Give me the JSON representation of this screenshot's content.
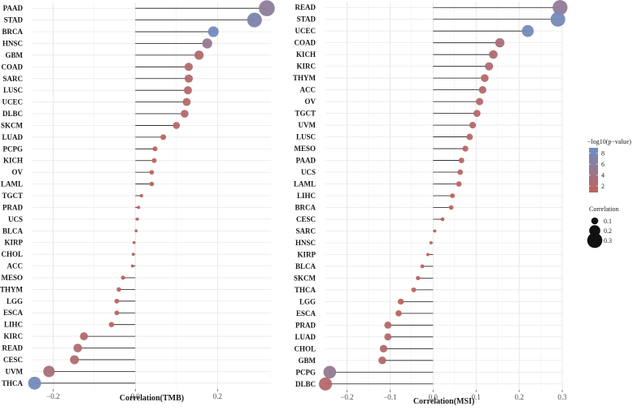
{
  "chart_data": [
    {
      "type": "lollipop",
      "xlabel": "Correlation(TMB)",
      "xlim": [
        -0.25,
        0.33
      ],
      "xticks": [
        -0.2,
        0.0,
        0.2
      ],
      "xtick_labels": [
        "−0.2",
        "0.0",
        "0.2"
      ],
      "categories": [
        "PAAD",
        "STAD",
        "BRCA",
        "HNSC",
        "GBM",
        "COAD",
        "SARC",
        "LUSC",
        "UCEC",
        "DLBC",
        "SKCM",
        "LUAD",
        "PCPG",
        "KICH",
        "OV",
        "LAML",
        "TGCT",
        "PRAD",
        "UCS",
        "BLCA",
        "KIRP",
        "CHOL",
        "ACC",
        "MESO",
        "THYM",
        "LGG",
        "ESCA",
        "LIHC",
        "KIRC",
        "READ",
        "CESC",
        "UVM",
        "THCA"
      ],
      "correlation": [
        0.32,
        0.29,
        0.19,
        0.175,
        0.155,
        0.13,
        0.13,
        0.128,
        0.125,
        0.12,
        0.1,
        0.068,
        0.048,
        0.046,
        0.04,
        0.04,
        0.015,
        0.008,
        0.005,
        0.002,
        -0.003,
        -0.005,
        -0.007,
        -0.03,
        -0.04,
        -0.045,
        -0.045,
        -0.058,
        -0.125,
        -0.14,
        -0.148,
        -0.21,
        -0.245
      ],
      "neg_log10_p": [
        5.8,
        7.0,
        8.5,
        5.0,
        2.5,
        2.2,
        2.0,
        2.0,
        2.0,
        2.0,
        2.0,
        1.5,
        1.0,
        1.0,
        1.0,
        1.0,
        1.0,
        1.0,
        1.0,
        1.0,
        1.0,
        1.0,
        1.0,
        1.0,
        1.0,
        1.0,
        1.0,
        1.0,
        2.0,
        2.5,
        2.5,
        3.0,
        8.0
      ]
    },
    {
      "type": "lollipop",
      "xlabel": "Correlation(MSI)",
      "xlim": [
        -0.25,
        0.3
      ],
      "xticks": [
        -0.2,
        -0.1,
        0.0,
        0.1,
        0.2,
        0.3
      ],
      "xtick_labels": [
        "−0.2",
        "−0.1",
        "0.0",
        "0.1",
        "0.2",
        "0.3"
      ],
      "categories": [
        "READ",
        "STAD",
        "UCEC",
        "COAD",
        "KICH",
        "KIRC",
        "THYM",
        "ACC",
        "OV",
        "TGCT",
        "UVM",
        "LUSC",
        "MESO",
        "PAAD",
        "UCS",
        "LAML",
        "LIHC",
        "BRCA",
        "CESC",
        "SARC",
        "HNSC",
        "KIRP",
        "BLCA",
        "SKCM",
        "THCA",
        "LGG",
        "ESCA",
        "PRAD",
        "LUAD",
        "CHOL",
        "GBM",
        "PCPG",
        "DLBC"
      ],
      "correlation": [
        0.295,
        0.29,
        0.22,
        0.155,
        0.14,
        0.13,
        0.12,
        0.115,
        0.108,
        0.102,
        0.092,
        0.085,
        0.075,
        0.066,
        0.063,
        0.06,
        0.045,
        0.042,
        0.022,
        0.004,
        -0.005,
        -0.012,
        -0.025,
        -0.035,
        -0.045,
        -0.075,
        -0.08,
        -0.105,
        -0.105,
        -0.115,
        -0.118,
        -0.24,
        -0.25
      ],
      "neg_log10_p": [
        5.5,
        8.0,
        8.0,
        3.0,
        2.5,
        2.5,
        2.0,
        2.0,
        2.0,
        2.0,
        2.0,
        1.5,
        1.5,
        1.5,
        1.0,
        1.0,
        1.0,
        1.0,
        1.0,
        1.0,
        1.0,
        1.0,
        1.0,
        1.0,
        1.0,
        1.0,
        1.0,
        2.0,
        2.0,
        2.0,
        2.0,
        5.0,
        2.0
      ]
    }
  ],
  "legend": {
    "color_title": "−log10(p−value)",
    "color_ticks": [
      8,
      6,
      4,
      2
    ],
    "color_low": "#c0625a",
    "color_high": "#6c8ec5",
    "color_range": [
      0.8,
      9.0
    ],
    "size_title": "Correlation",
    "size_ticks": [
      0.1,
      0.2,
      0.3
    ],
    "size_tick_labels": [
      "0.1",
      "0.2",
      "0.3"
    ]
  }
}
